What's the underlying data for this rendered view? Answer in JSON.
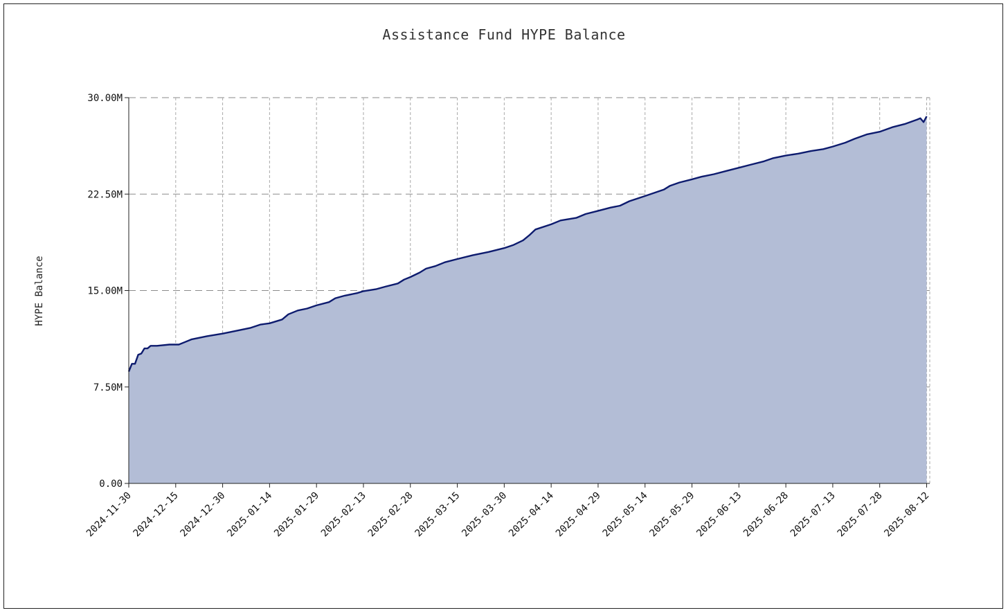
{
  "chart_data": {
    "type": "area",
    "title": "Assistance Fund HYPE Balance",
    "xlabel": "",
    "ylabel": "HYPE Balance",
    "x_ticks": [
      "2024-11-30",
      "2024-12-15",
      "2024-12-30",
      "2025-01-14",
      "2025-01-29",
      "2025-02-13",
      "2025-02-28",
      "2025-03-15",
      "2025-03-30",
      "2025-04-14",
      "2025-04-29",
      "2025-05-14",
      "2025-05-29",
      "2025-06-13",
      "2025-06-28",
      "2025-07-13",
      "2025-07-28",
      "2025-08-12"
    ],
    "y_ticks": [
      "0.00",
      "7.50M",
      "15.00M",
      "22.50M",
      "30.00M"
    ],
    "ylim": [
      0,
      30000000
    ],
    "xlim": [
      "2024-11-30",
      "2025-08-13"
    ],
    "grid": true,
    "colors": {
      "line": "#0d1b6e",
      "fill": "#b3bdd6",
      "grid": "#9a9a9a"
    },
    "series": [
      {
        "points": [
          [
            "2024-11-30",
            8.7
          ],
          [
            "2024-12-01",
            9.3
          ],
          [
            "2024-12-02",
            9.3
          ],
          [
            "2024-12-03",
            10.0
          ],
          [
            "2024-12-04",
            10.1
          ],
          [
            "2024-12-05",
            10.5
          ],
          [
            "2024-12-06",
            10.5
          ],
          [
            "2024-12-07",
            10.7
          ],
          [
            "2024-12-09",
            10.7
          ],
          [
            "2024-12-13",
            10.8
          ],
          [
            "2024-12-16",
            10.8
          ],
          [
            "2024-12-18",
            11.0
          ],
          [
            "2024-12-20",
            11.2
          ],
          [
            "2024-12-25",
            11.45
          ],
          [
            "2024-12-30",
            11.65
          ],
          [
            "2025-01-04",
            11.9
          ],
          [
            "2025-01-08",
            12.1
          ],
          [
            "2025-01-11",
            12.35
          ],
          [
            "2025-01-14",
            12.45
          ],
          [
            "2025-01-18",
            12.75
          ],
          [
            "2025-01-20",
            13.15
          ],
          [
            "2025-01-23",
            13.45
          ],
          [
            "2025-01-26",
            13.6
          ],
          [
            "2025-01-29",
            13.85
          ],
          [
            "2025-02-02",
            14.1
          ],
          [
            "2025-02-04",
            14.4
          ],
          [
            "2025-02-07",
            14.6
          ],
          [
            "2025-02-11",
            14.8
          ],
          [
            "2025-02-13",
            14.95
          ],
          [
            "2025-02-17",
            15.1
          ],
          [
            "2025-02-20",
            15.3
          ],
          [
            "2025-02-24",
            15.55
          ],
          [
            "2025-02-26",
            15.85
          ],
          [
            "2025-02-28",
            16.05
          ],
          [
            "2025-03-03",
            16.4
          ],
          [
            "2025-03-05",
            16.7
          ],
          [
            "2025-03-08",
            16.9
          ],
          [
            "2025-03-11",
            17.2
          ],
          [
            "2025-03-15",
            17.45
          ],
          [
            "2025-03-20",
            17.75
          ],
          [
            "2025-03-25",
            18.0
          ],
          [
            "2025-03-30",
            18.3
          ],
          [
            "2025-04-02",
            18.55
          ],
          [
            "2025-04-05",
            18.9
          ],
          [
            "2025-04-07",
            19.3
          ],
          [
            "2025-04-09",
            19.75
          ],
          [
            "2025-04-14",
            20.15
          ],
          [
            "2025-04-17",
            20.45
          ],
          [
            "2025-04-22",
            20.65
          ],
          [
            "2025-04-25",
            20.95
          ],
          [
            "2025-04-29",
            21.2
          ],
          [
            "2025-05-03",
            21.45
          ],
          [
            "2025-05-06",
            21.6
          ],
          [
            "2025-05-09",
            21.95
          ],
          [
            "2025-05-14",
            22.35
          ],
          [
            "2025-05-17",
            22.6
          ],
          [
            "2025-05-20",
            22.85
          ],
          [
            "2025-05-22",
            23.15
          ],
          [
            "2025-05-25",
            23.4
          ],
          [
            "2025-05-29",
            23.65
          ],
          [
            "2025-06-01",
            23.85
          ],
          [
            "2025-06-05",
            24.05
          ],
          [
            "2025-06-09",
            24.3
          ],
          [
            "2025-06-13",
            24.55
          ],
          [
            "2025-06-17",
            24.8
          ],
          [
            "2025-06-21",
            25.05
          ],
          [
            "2025-06-24",
            25.3
          ],
          [
            "2025-06-28",
            25.5
          ],
          [
            "2025-07-02",
            25.65
          ],
          [
            "2025-07-06",
            25.85
          ],
          [
            "2025-07-10",
            26.0
          ],
          [
            "2025-07-13",
            26.2
          ],
          [
            "2025-07-17",
            26.5
          ],
          [
            "2025-07-20",
            26.8
          ],
          [
            "2025-07-24",
            27.15
          ],
          [
            "2025-07-28",
            27.35
          ],
          [
            "2025-08-01",
            27.7
          ],
          [
            "2025-08-05",
            27.95
          ],
          [
            "2025-08-09",
            28.3
          ],
          [
            "2025-08-10",
            28.4
          ],
          [
            "2025-08-11",
            28.1
          ],
          [
            "2025-08-12",
            28.55
          ]
        ],
        "y_unit": "millions"
      }
    ]
  }
}
